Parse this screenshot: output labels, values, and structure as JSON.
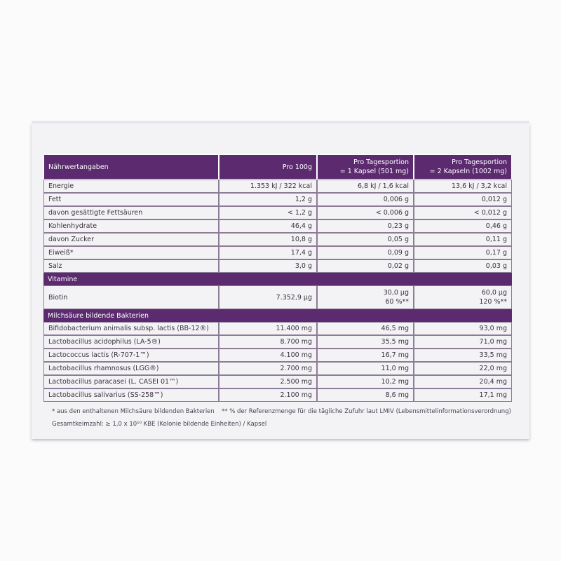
{
  "table": {
    "header": [
      [
        "Nährwertangaben"
      ],
      [
        "Pro 100g"
      ],
      [
        "Pro Tagesportion",
        "= 1 Kapsel (501 mg)"
      ],
      [
        "Pro Tagesportion",
        "= 2 Kapseln (1002 mg)"
      ]
    ],
    "sections": [
      {
        "rows": [
          [
            [
              "Energie"
            ],
            [
              "1.353 kJ / 322 kcal"
            ],
            [
              "6,8 kJ / 1,6 kcal"
            ],
            [
              "13,6 kJ / 3,2 kcal"
            ]
          ],
          [
            [
              "Fett"
            ],
            [
              "1,2 g"
            ],
            [
              "0,006 g"
            ],
            [
              "0,012 g"
            ]
          ],
          [
            [
              "davon gesättigte Fettsäuren"
            ],
            [
              "< 1,2 g"
            ],
            [
              "< 0,006 g"
            ],
            [
              "< 0,012 g"
            ]
          ],
          [
            [
              "Kohlenhydrate"
            ],
            [
              "46,4 g"
            ],
            [
              "0,23 g"
            ],
            [
              "0,46 g"
            ]
          ],
          [
            [
              "davon Zucker"
            ],
            [
              "10,8 g"
            ],
            [
              "0,05 g"
            ],
            [
              "0,11 g"
            ]
          ],
          [
            [
              "Eiweiß*"
            ],
            [
              "17,4 g"
            ],
            [
              "0,09 g"
            ],
            [
              "0,17 g"
            ]
          ],
          [
            [
              "Salz"
            ],
            [
              "3,0 g"
            ],
            [
              "0,02 g"
            ],
            [
              "0,03 g"
            ]
          ]
        ]
      },
      {
        "title": "Vitamine",
        "rows": [
          [
            [
              "Biotin"
            ],
            [
              "7.352,9 µg"
            ],
            [
              "30,0 µg",
              "60 %**"
            ],
            [
              "60,0 µg",
              "120 %**"
            ]
          ]
        ]
      },
      {
        "title": "Milchsäure bildende Bakterien",
        "rows": [
          [
            [
              "Bifidobacterium animalis subsp. lactis (BB-12®)"
            ],
            [
              "11.400 mg"
            ],
            [
              "46,5 mg"
            ],
            [
              "93,0 mg"
            ]
          ],
          [
            [
              "Lactobacillus acidophilus (LA-5®)"
            ],
            [
              "8.700 mg"
            ],
            [
              "35,5 mg"
            ],
            [
              "71,0 mg"
            ]
          ],
          [
            [
              "Lactococcus lactis (R-707-1™)"
            ],
            [
              "4.100 mg"
            ],
            [
              "16,7 mg"
            ],
            [
              "33,5 mg"
            ]
          ],
          [
            [
              "Lactobacillus rhamnosus (LGG®)"
            ],
            [
              "2.700 mg"
            ],
            [
              "11,0 mg"
            ],
            [
              "22,0 mg"
            ]
          ],
          [
            [
              "Lactobacillus paracasei (L. CASEI 01™)"
            ],
            [
              "2.500 mg"
            ],
            [
              "10,2 mg"
            ],
            [
              "20,4 mg"
            ]
          ],
          [
            [
              "Lactobacillus salivarius (SS-258™)"
            ],
            [
              "2.100 mg"
            ],
            [
              "8,6 mg"
            ],
            [
              "17,1 mg"
            ]
          ]
        ]
      }
    ],
    "footnotes": [
      "* aus den enthaltenen Milchsäure bildenden Bakterien",
      "** % der Referenzmenge für die tägliche Zufuhr laut LMIV (Lebensmittelinformationsverordnung)",
      "Gesamtkeimzahl: ≥ 1,0 x 10¹⁰ KBE (Kolonie bildende Einheiten) / Kapsel"
    ]
  }
}
